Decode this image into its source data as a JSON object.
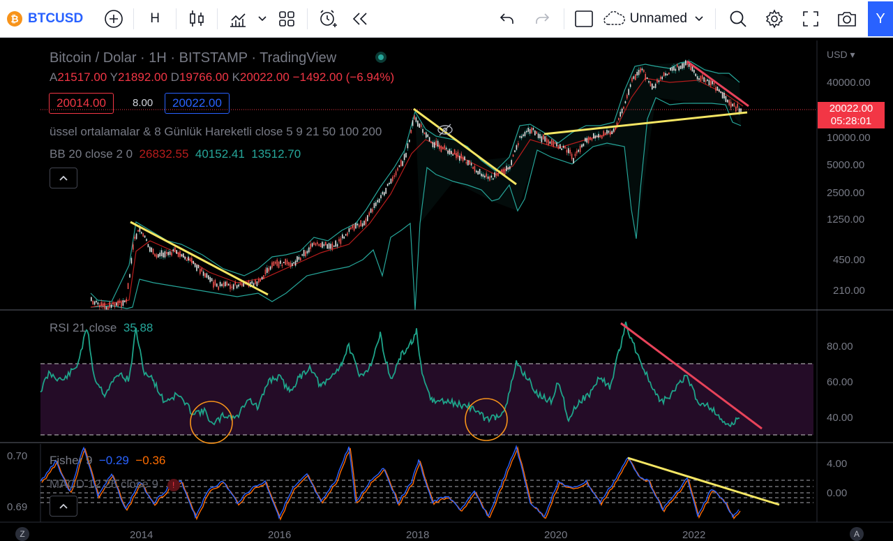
{
  "toolbar": {
    "symbol_badge": "₿",
    "symbol": "BTCUSD",
    "interval": "H",
    "layout_name": "Unnamed",
    "right_button": "Y",
    "icons": [
      "plus-circle-icon",
      "candles-icon",
      "indicators-icon",
      "chevron-down-icon",
      "templates-icon",
      "alert-icon",
      "replay-icon",
      "undo-icon",
      "redo-icon",
      "square-icon",
      "cloud-icon",
      "chevron-down-icon",
      "search-icon",
      "gear-icon",
      "fullscreen-icon",
      "camera-icon"
    ]
  },
  "main_pane": {
    "title": "Bitcoin / Dolar · 1H · BITSTAMP · TradingView",
    "ohlc": {
      "a_label": "A",
      "a": "21517.00",
      "y_label": "Y",
      "y": "21892.00",
      "d_label": "D",
      "d": "19766.00",
      "k_label": "K",
      "k": "20022.00",
      "change": "−1492.00 (−6.94%)"
    },
    "bid": "20014.00",
    "spread": "8.00",
    "ask": "20022.00",
    "ema_legend": "üssel ortalamalar & 8 Günlük Hareketli close 5 9 21 50 100 200",
    "bb_label": "BB 20 close 2 0",
    "bb_mid": "26832.55",
    "bb_upper": "40152.41",
    "bb_lower": "13512.70",
    "currency": "USD ▾",
    "price_ticks": [
      "40000.00",
      "10000.00",
      "5000.00",
      "2500.00",
      "1250.00",
      "450.00",
      "210.00"
    ],
    "last_price": "20022.00",
    "countdown": "05:28:01"
  },
  "rsi_pane": {
    "label": "RSI 21 close",
    "value": "35.88",
    "ticks": [
      "80.00",
      "60.00",
      "40.00"
    ]
  },
  "fisher_pane": {
    "label": "Fisher 9",
    "v1": "−0.29",
    "v2": "−0.36",
    "macd_label": "MACD 12 26 close 9",
    "left_ticks": [
      "0.70",
      "0.69"
    ],
    "right_ticks": [
      "4.00",
      "0.00"
    ]
  },
  "time_axis": {
    "labels": [
      "2014",
      "2016",
      "2018",
      "2020",
      "2022"
    ],
    "left_btn": "Z",
    "right_btn": "A"
  },
  "colors": {
    "accent": "#2962ff",
    "down": "#f23645",
    "up": "#26a69a",
    "trendline_yellow": "#f5e663",
    "trendline_red": "#e8435a",
    "rsi_line": "#1ea48a",
    "fisher_blue": "#2962ff",
    "fisher_orange": "#ff6d00"
  }
}
